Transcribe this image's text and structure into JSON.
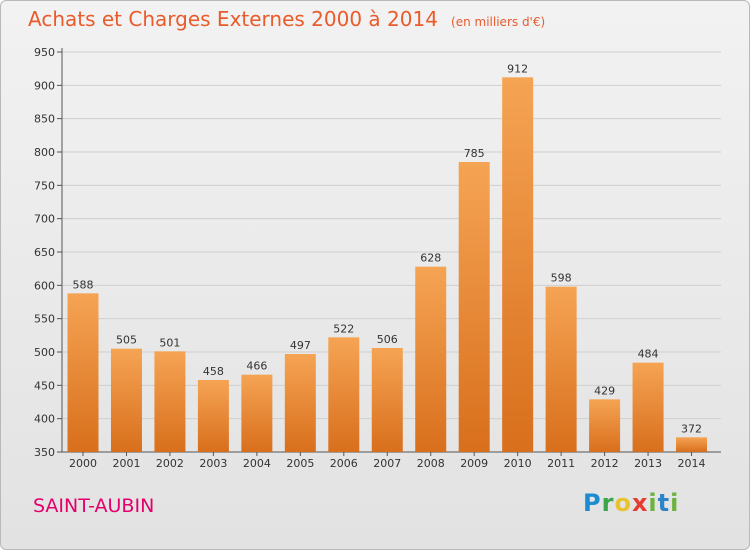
{
  "chart_data": {
    "type": "bar",
    "title": "Achats et Charges Externes 2000 à 2014",
    "unit_note": "(en milliers d'€)",
    "categories": [
      "2000",
      "2001",
      "2002",
      "2003",
      "2004",
      "2005",
      "2006",
      "2007",
      "2008",
      "2009",
      "2010",
      "2011",
      "2012",
      "2013",
      "2014"
    ],
    "values": [
      588,
      505,
      501,
      458,
      466,
      497,
      522,
      506,
      628,
      785,
      912,
      598,
      429,
      484,
      372
    ],
    "ylim": [
      350,
      950
    ],
    "yticks": [
      350,
      400,
      450,
      500,
      550,
      600,
      650,
      700,
      750,
      800,
      850,
      900,
      950
    ],
    "grid": true,
    "bar_color_top": "#f5a454",
    "bar_color_bottom": "#d86f1c",
    "xlabel": "",
    "ylabel": ""
  },
  "place_name": "SAINT-AUBIN",
  "logo": {
    "text": "Proxiti",
    "letters": [
      "P",
      "r",
      "o",
      "x",
      "i",
      "t",
      "i"
    ]
  },
  "colors": {
    "title": "#ea5b2c",
    "place": "#e3006c"
  }
}
